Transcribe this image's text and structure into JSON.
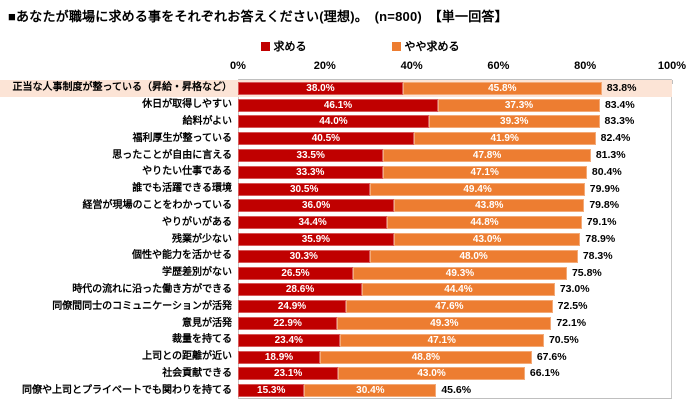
{
  "title": "■あなたが職場に求める事をそれぞれお答えください(理想)。　(n=800)　【単一回答】",
  "legend": {
    "items": [
      {
        "label": "求める",
        "color": "#c00000"
      },
      {
        "label": "やや求める",
        "color": "#ed7d31"
      }
    ]
  },
  "colors": {
    "series1": "#c00000",
    "series2": "#ed7d31",
    "highlight_row_bg": "#fce4d6",
    "axis_line": "#bfbfbf",
    "bar_label_text": "#ffffff",
    "total_label_text": "#000000"
  },
  "chart_data": {
    "type": "bar",
    "orientation": "horizontal",
    "stacked": true,
    "title": "■あなたが職場に求める事をそれぞれお答えください(理想)。　(n=800)　【単一回答】",
    "x_ticks": [
      "0%",
      "20%",
      "40%",
      "60%",
      "80%",
      "100%"
    ],
    "xlim": [
      0,
      100
    ],
    "grid": false,
    "legend_position": "top-center",
    "highlighted_row_index": 0,
    "categories": [
      "正当な人事制度が整っている（昇給・昇格など）",
      "休日が取得しやすい",
      "給料がよい",
      "福利厚生が整っている",
      "思ったことが自由に言える",
      "やりたい仕事である",
      "誰でも活躍できる環境",
      "経営が現場のことをわかっている",
      "やりがいがある",
      "残業が少ない",
      "個性や能力を活かせる",
      "学歴差別がない",
      "時代の流れに沿った働き方ができる",
      "同僚間同士のコミュニケーションが活発",
      "意見が活発",
      "裁量を持てる",
      "上司との距離が近い",
      "社会貢献できる",
      "同僚や上司とプライベートでも関わりを持てる"
    ],
    "series": [
      {
        "name": "求める",
        "color": "#c00000",
        "values": [
          38.0,
          46.1,
          44.0,
          40.5,
          33.5,
          33.3,
          30.5,
          36.0,
          34.4,
          35.9,
          30.3,
          26.5,
          28.6,
          24.9,
          22.9,
          23.4,
          18.9,
          23.1,
          15.3
        ]
      },
      {
        "name": "やや求める",
        "color": "#ed7d31",
        "values": [
          45.8,
          37.3,
          39.3,
          41.9,
          47.8,
          47.1,
          49.4,
          43.8,
          44.8,
          43.0,
          48.0,
          49.3,
          44.4,
          47.6,
          49.3,
          47.1,
          48.8,
          43.0,
          30.4
        ]
      }
    ],
    "totals": [
      83.8,
      83.4,
      83.3,
      82.4,
      81.3,
      80.4,
      79.9,
      79.8,
      79.1,
      78.9,
      78.3,
      75.8,
      73.0,
      72.5,
      72.1,
      70.5,
      67.6,
      66.1,
      45.6
    ]
  }
}
